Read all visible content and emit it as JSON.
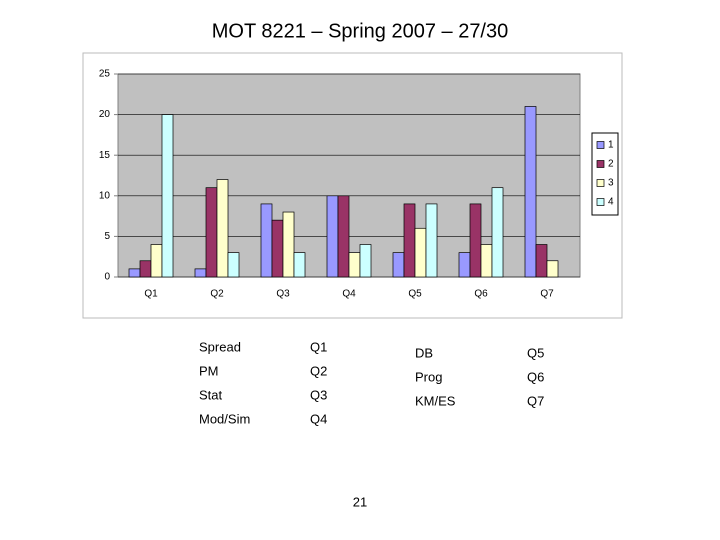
{
  "chart_data": {
    "type": "bar",
    "title": "MOT 8221 – Spring 2007 – 27/30",
    "categories": [
      "Q1",
      "Q2",
      "Q3",
      "Q4",
      "Q5",
      "Q6",
      "Q7"
    ],
    "series": [
      {
        "name": "1",
        "color": "#9999ff",
        "values": [
          1,
          1,
          9,
          10,
          3,
          3,
          21
        ]
      },
      {
        "name": "2",
        "color": "#993366",
        "values": [
          2,
          11,
          7,
          10,
          9,
          9,
          4
        ]
      },
      {
        "name": "3",
        "color": "#ffffcc",
        "values": [
          4,
          12,
          8,
          3,
          6,
          4,
          2
        ]
      },
      {
        "name": "4",
        "color": "#ccffff",
        "values": [
          20,
          3,
          3,
          4,
          9,
          11,
          0
        ]
      }
    ],
    "ylim": [
      0,
      25
    ],
    "yticks": [
      0,
      5,
      10,
      15,
      20,
      25
    ],
    "grid": true,
    "legend": "right"
  },
  "key_left": [
    [
      "Spread",
      "Q1"
    ],
    [
      "PM",
      "Q2"
    ],
    [
      "Stat",
      "Q3"
    ],
    [
      "Mod/Sim",
      "Q4"
    ]
  ],
  "key_right": [
    [
      "DB",
      "Q5"
    ],
    [
      "Prog",
      "Q6"
    ],
    [
      "KM/ES",
      "Q7"
    ]
  ],
  "page_number": "21"
}
